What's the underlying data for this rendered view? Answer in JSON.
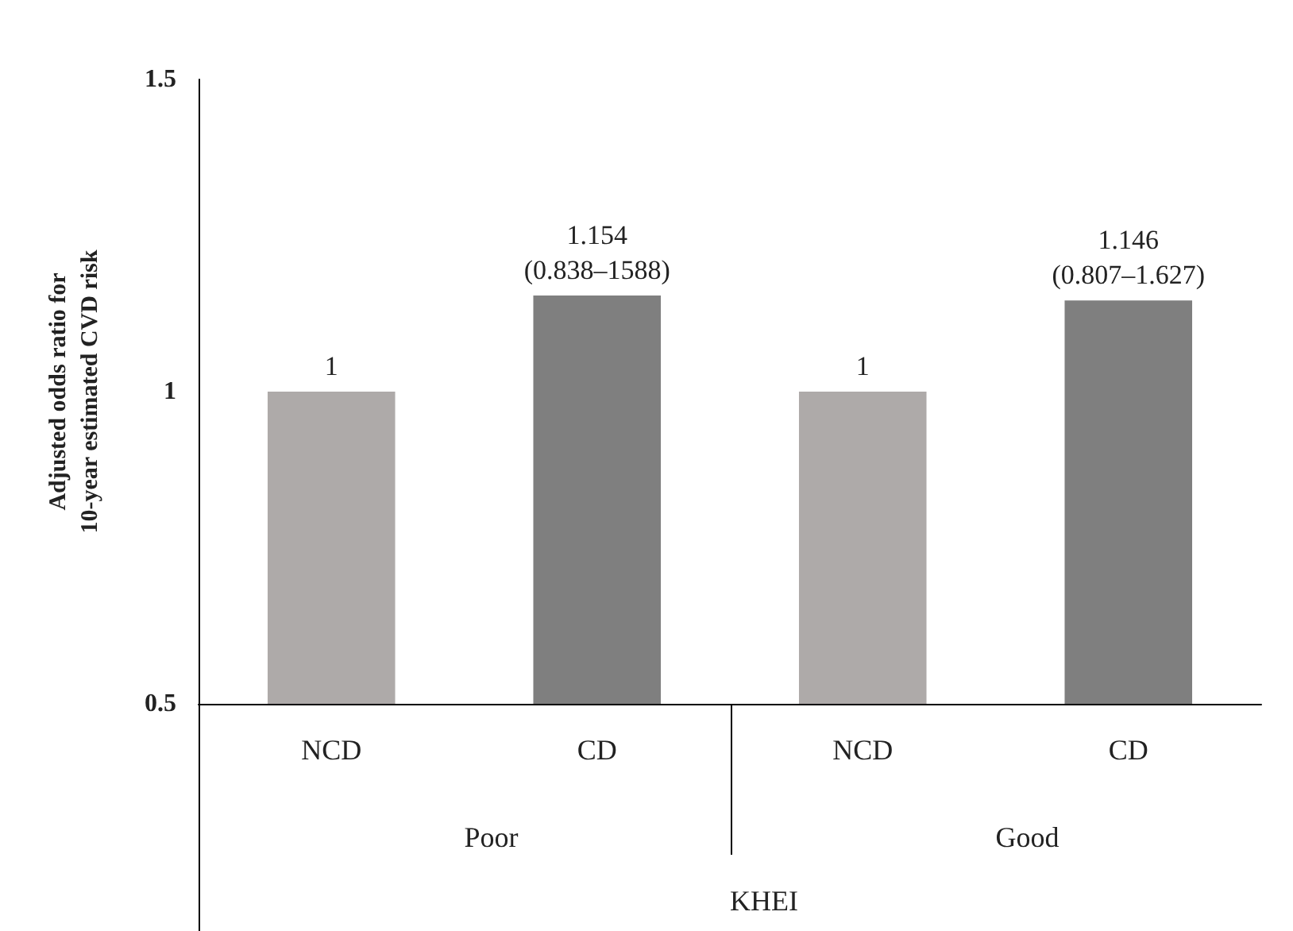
{
  "chart_data": {
    "type": "bar",
    "categories": [
      "NCD",
      "CD",
      "NCD",
      "CD"
    ],
    "values": [
      1,
      1.154,
      1,
      1.146
    ],
    "colors": [
      "#aeaaa9",
      "#7f7f7f",
      "#aeaaa9",
      "#7f7f7f"
    ],
    "value_labels": [
      "1",
      "1.154\n(0.838–1588)",
      "1",
      "1.146\n(0.807–1.627)"
    ],
    "ylabel": "Adjusted odds ratio for\n10-year estimated CVD risk",
    "xlabel": "KHEI",
    "annotations": [
      "Poor",
      "Good"
    ],
    "ylim": [
      0.5,
      1.5
    ],
    "yticks": [
      0.5,
      1,
      1.5
    ],
    "grid": false
  }
}
